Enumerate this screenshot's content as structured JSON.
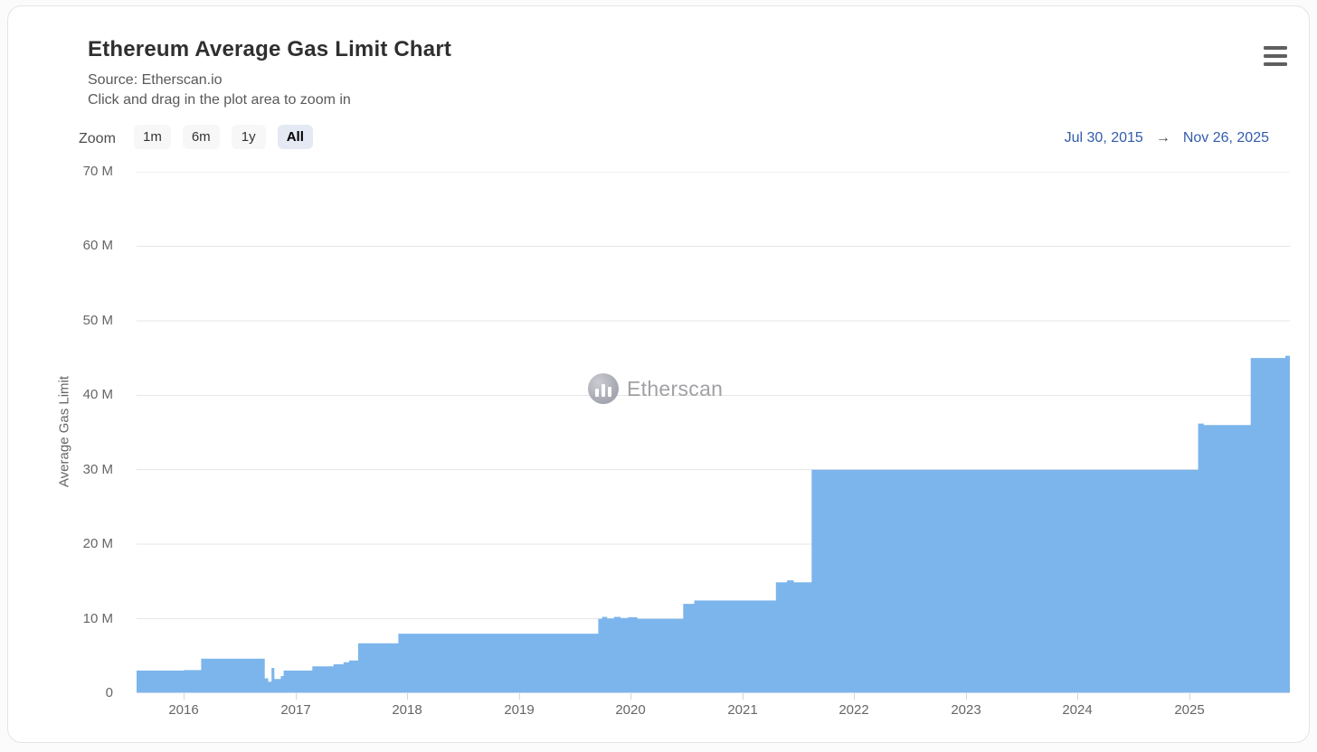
{
  "header": {
    "title": "Ethereum Average Gas Limit Chart",
    "source_line": "Source: Etherscan.io",
    "hint_line": "Click and drag in the plot area to zoom in"
  },
  "menu": {
    "icon": "hamburger-menu-icon"
  },
  "range_selector": {
    "zoom_label": "Zoom",
    "buttons": [
      {
        "label": "1m",
        "selected": false
      },
      {
        "label": "6m",
        "selected": false
      },
      {
        "label": "1y",
        "selected": false
      },
      {
        "label": "All",
        "selected": true
      }
    ],
    "from_date": "Jul 30, 2015",
    "arrow": "→",
    "to_date": "Nov 26, 2025"
  },
  "watermark": {
    "text": "Etherscan",
    "logo": "etherscan-logo-icon"
  },
  "colors": {
    "area_fill": "#7cb5ec",
    "gridline": "#e6e6e6",
    "axis_line": "#ccd6eb",
    "tick_label": "#666666",
    "title_text": "#2f2f2f",
    "subtitle_text": "#595959",
    "date_link": "#335cad",
    "button_bg": "#f7f7f7",
    "button_selected_bg": "#e4e9f3"
  },
  "chart_data": {
    "type": "area",
    "title": "Ethereum Average Gas Limit Chart",
    "series_name": "Average Gas Limit",
    "xlabel": "",
    "ylabel": "Average Gas Limit",
    "x_unit": "year (decimal)",
    "y_unit": "million gas",
    "xlim": [
      2015.577,
      2025.901
    ],
    "ylim": [
      0,
      70
    ],
    "xticks": [
      2016,
      2017,
      2018,
      2019,
      2020,
      2021,
      2022,
      2023,
      2024,
      2025
    ],
    "ytick_values": [
      0,
      10,
      20,
      30,
      40,
      50,
      60,
      70
    ],
    "ytick_labels": [
      "0",
      "10 M",
      "20 M",
      "30 M",
      "40 M",
      "50 M",
      "60 M",
      "70 M"
    ],
    "grid": "horizontal",
    "legend": "none",
    "interpolation": "step-after",
    "points": [
      [
        2015.577,
        3.05
      ],
      [
        2016.0,
        3.1
      ],
      [
        2016.155,
        4.65
      ],
      [
        2016.724,
        2.0
      ],
      [
        2016.755,
        1.55
      ],
      [
        2016.785,
        3.4
      ],
      [
        2016.81,
        1.9
      ],
      [
        2016.868,
        2.3
      ],
      [
        2016.894,
        3.05
      ],
      [
        2017.15,
        3.6
      ],
      [
        2017.34,
        3.9
      ],
      [
        2017.43,
        4.15
      ],
      [
        2017.48,
        4.4
      ],
      [
        2017.56,
        6.7
      ],
      [
        2017.92,
        8.0
      ],
      [
        2019.71,
        10.0
      ],
      [
        2019.745,
        10.25
      ],
      [
        2019.79,
        10.05
      ],
      [
        2019.85,
        10.25
      ],
      [
        2019.91,
        10.1
      ],
      [
        2019.975,
        10.2
      ],
      [
        2020.06,
        10.0
      ],
      [
        2020.47,
        12.0
      ],
      [
        2020.57,
        12.45
      ],
      [
        2021.3,
        14.9
      ],
      [
        2021.4,
        15.15
      ],
      [
        2021.46,
        14.9
      ],
      [
        2021.62,
        30.0
      ],
      [
        2025.08,
        36.2
      ],
      [
        2025.13,
        36.0
      ],
      [
        2025.55,
        45.0
      ],
      [
        2025.86,
        45.3
      ],
      [
        2025.901,
        45.3
      ]
    ]
  }
}
